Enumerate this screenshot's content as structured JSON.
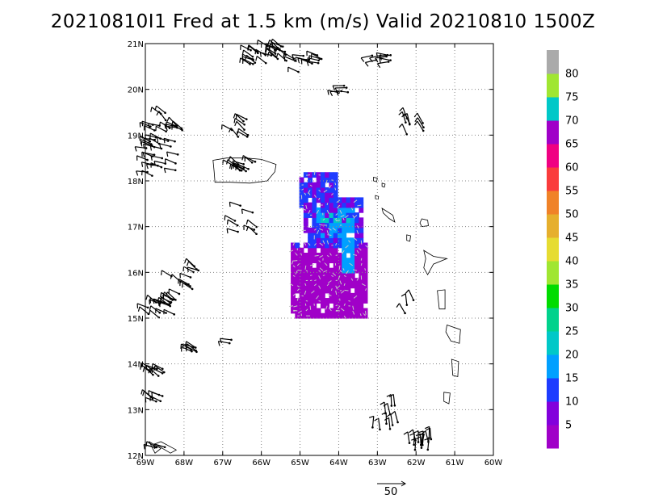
{
  "title": "20210810I1 Fred at 1.5 km (m/s) Valid 20210810 1500Z",
  "map": {
    "lon_min": -69,
    "lon_max": -60,
    "lat_min": 12,
    "lat_max": 21,
    "x_ticks": [
      {
        "lon": -69,
        "label": "69W"
      },
      {
        "lon": -68,
        "label": "68W"
      },
      {
        "lon": -67,
        "label": "67W"
      },
      {
        "lon": -66,
        "label": "66W"
      },
      {
        "lon": -65,
        "label": "65W"
      },
      {
        "lon": -64,
        "label": "64W"
      },
      {
        "lon": -63,
        "label": "63W"
      },
      {
        "lon": -62,
        "label": "62W"
      },
      {
        "lon": -61,
        "label": "61W"
      },
      {
        "lon": -60,
        "label": "60W"
      }
    ],
    "y_ticks": [
      {
        "lat": 12,
        "label": "12N"
      },
      {
        "lat": 13,
        "label": "13N"
      },
      {
        "lat": 14,
        "label": "14N"
      },
      {
        "lat": 15,
        "label": "15N"
      },
      {
        "lat": 16,
        "label": "16N"
      },
      {
        "lat": 17,
        "label": "17N"
      },
      {
        "lat": 18,
        "label": "18N"
      },
      {
        "lat": 19,
        "label": "19N"
      },
      {
        "lat": 20,
        "label": "20N"
      },
      {
        "lat": 21,
        "label": "21N"
      }
    ],
    "grid": true
  },
  "colorbar": {
    "bins": [
      {
        "color": "#a000c8",
        "label": "5"
      },
      {
        "color": "#8200dc",
        "label": "10"
      },
      {
        "color": "#1e3cff",
        "label": "15"
      },
      {
        "color": "#00a0ff",
        "label": "20"
      },
      {
        "color": "#00c8c8",
        "label": "25"
      },
      {
        "color": "#00d28c",
        "label": "30"
      },
      {
        "color": "#00dc00",
        "label": "35"
      },
      {
        "color": "#a0e632",
        "label": "40"
      },
      {
        "color": "#e6dc32",
        "label": "45"
      },
      {
        "color": "#e6af2d",
        "label": "50"
      },
      {
        "color": "#f08228",
        "label": "55"
      },
      {
        "color": "#fa3c3c",
        "label": "60"
      },
      {
        "color": "#f00082",
        "label": "65"
      },
      {
        "color": "#a000c8",
        "label": "70"
      },
      {
        "color": "#00c8c8",
        "label": "75"
      },
      {
        "color": "#a0e632",
        "label": "80"
      },
      {
        "color": "#aaaaaa",
        "label": ""
      }
    ]
  },
  "reference_vector": {
    "label": "50"
  }
}
